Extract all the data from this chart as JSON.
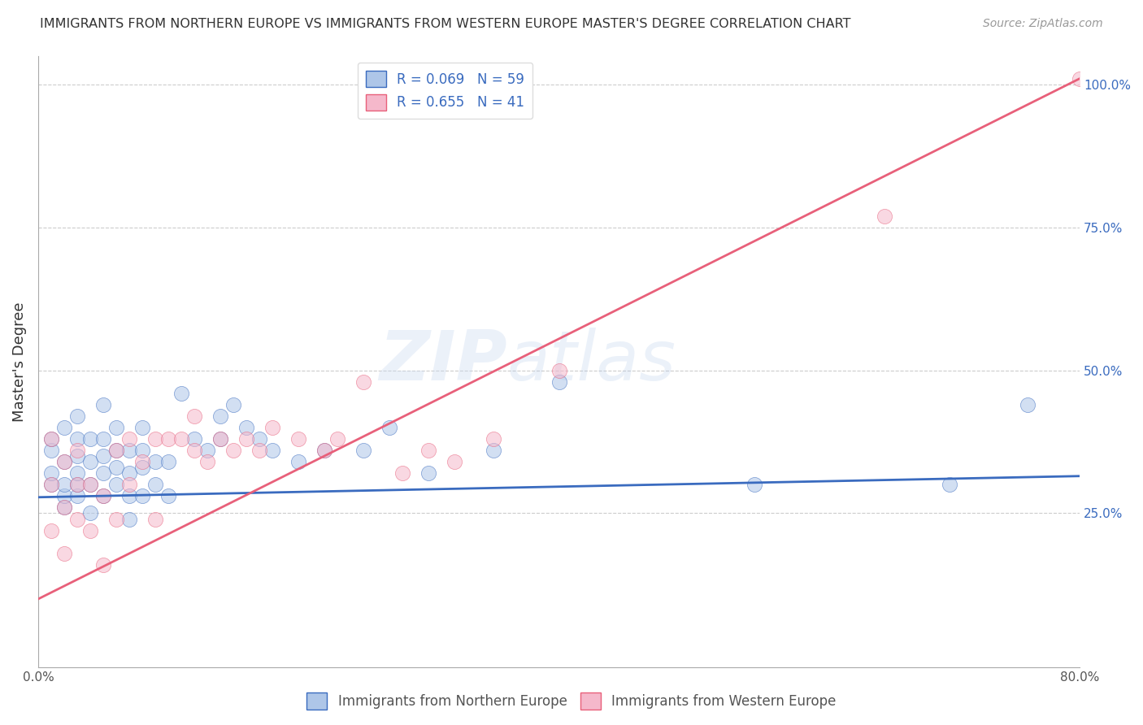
{
  "title": "IMMIGRANTS FROM NORTHERN EUROPE VS IMMIGRANTS FROM WESTERN EUROPE MASTER'S DEGREE CORRELATION CHART",
  "source": "Source: ZipAtlas.com",
  "ylabel": "Master's Degree",
  "legend_label1": "Immigrants from Northern Europe",
  "legend_label2": "Immigrants from Western Europe",
  "R1": 0.069,
  "N1": 59,
  "R2": 0.655,
  "N2": 41,
  "color1": "#aec6e8",
  "color2": "#f5b8cb",
  "line_color1": "#3a6bbf",
  "line_color2": "#e8607a",
  "watermark_zip": "ZIP",
  "watermark_atlas": "atlas",
  "xmin": 0.0,
  "xmax": 0.8,
  "ymin": -0.02,
  "ymax": 1.05,
  "ytick_vals": [
    0.25,
    0.5,
    0.75,
    1.0
  ],
  "ytick_labels": [
    "25.0%",
    "50.0%",
    "75.0%",
    "100.0%"
  ],
  "xtick_vals": [
    0.0,
    0.8
  ],
  "xtick_labels": [
    "0.0%",
    "80.0%"
  ],
  "scatter1_x": [
    0.01,
    0.01,
    0.01,
    0.01,
    0.02,
    0.02,
    0.02,
    0.02,
    0.02,
    0.03,
    0.03,
    0.03,
    0.03,
    0.03,
    0.03,
    0.04,
    0.04,
    0.04,
    0.04,
    0.05,
    0.05,
    0.05,
    0.05,
    0.05,
    0.06,
    0.06,
    0.06,
    0.06,
    0.07,
    0.07,
    0.07,
    0.07,
    0.08,
    0.08,
    0.08,
    0.08,
    0.09,
    0.09,
    0.1,
    0.1,
    0.11,
    0.12,
    0.13,
    0.14,
    0.14,
    0.15,
    0.16,
    0.17,
    0.18,
    0.2,
    0.22,
    0.25,
    0.27,
    0.3,
    0.35,
    0.4,
    0.55,
    0.7,
    0.76
  ],
  "scatter1_y": [
    0.3,
    0.32,
    0.36,
    0.38,
    0.26,
    0.28,
    0.3,
    0.34,
    0.4,
    0.28,
    0.3,
    0.32,
    0.35,
    0.38,
    0.42,
    0.25,
    0.3,
    0.34,
    0.38,
    0.28,
    0.32,
    0.35,
    0.38,
    0.44,
    0.3,
    0.33,
    0.36,
    0.4,
    0.24,
    0.28,
    0.32,
    0.36,
    0.28,
    0.33,
    0.36,
    0.4,
    0.3,
    0.34,
    0.28,
    0.34,
    0.46,
    0.38,
    0.36,
    0.38,
    0.42,
    0.44,
    0.4,
    0.38,
    0.36,
    0.34,
    0.36,
    0.36,
    0.4,
    0.32,
    0.36,
    0.48,
    0.3,
    0.3,
    0.44
  ],
  "scatter2_x": [
    0.01,
    0.01,
    0.01,
    0.02,
    0.02,
    0.02,
    0.03,
    0.03,
    0.03,
    0.04,
    0.04,
    0.05,
    0.05,
    0.06,
    0.06,
    0.07,
    0.07,
    0.08,
    0.09,
    0.09,
    0.1,
    0.11,
    0.12,
    0.12,
    0.13,
    0.14,
    0.15,
    0.16,
    0.17,
    0.18,
    0.2,
    0.22,
    0.23,
    0.25,
    0.28,
    0.3,
    0.32,
    0.35,
    0.4,
    0.65,
    0.8
  ],
  "scatter2_y": [
    0.22,
    0.3,
    0.38,
    0.18,
    0.26,
    0.34,
    0.24,
    0.3,
    0.36,
    0.22,
    0.3,
    0.16,
    0.28,
    0.24,
    0.36,
    0.3,
    0.38,
    0.34,
    0.24,
    0.38,
    0.38,
    0.38,
    0.36,
    0.42,
    0.34,
    0.38,
    0.36,
    0.38,
    0.36,
    0.4,
    0.38,
    0.36,
    0.38,
    0.48,
    0.32,
    0.36,
    0.34,
    0.38,
    0.5,
    0.77,
    1.01
  ],
  "trend1_x": [
    0.0,
    0.8
  ],
  "trend1_y": [
    0.278,
    0.315
  ],
  "trend2_x": [
    0.0,
    0.8
  ],
  "trend2_y": [
    0.1,
    1.01
  ],
  "dot_size": 170,
  "dot_alpha": 0.55,
  "background_color": "#ffffff",
  "grid_color": "#cccccc",
  "title_fontsize": 11.5,
  "axis_label_fontsize": 13,
  "tick_fontsize": 11,
  "legend_fontsize": 12,
  "source_fontsize": 10
}
